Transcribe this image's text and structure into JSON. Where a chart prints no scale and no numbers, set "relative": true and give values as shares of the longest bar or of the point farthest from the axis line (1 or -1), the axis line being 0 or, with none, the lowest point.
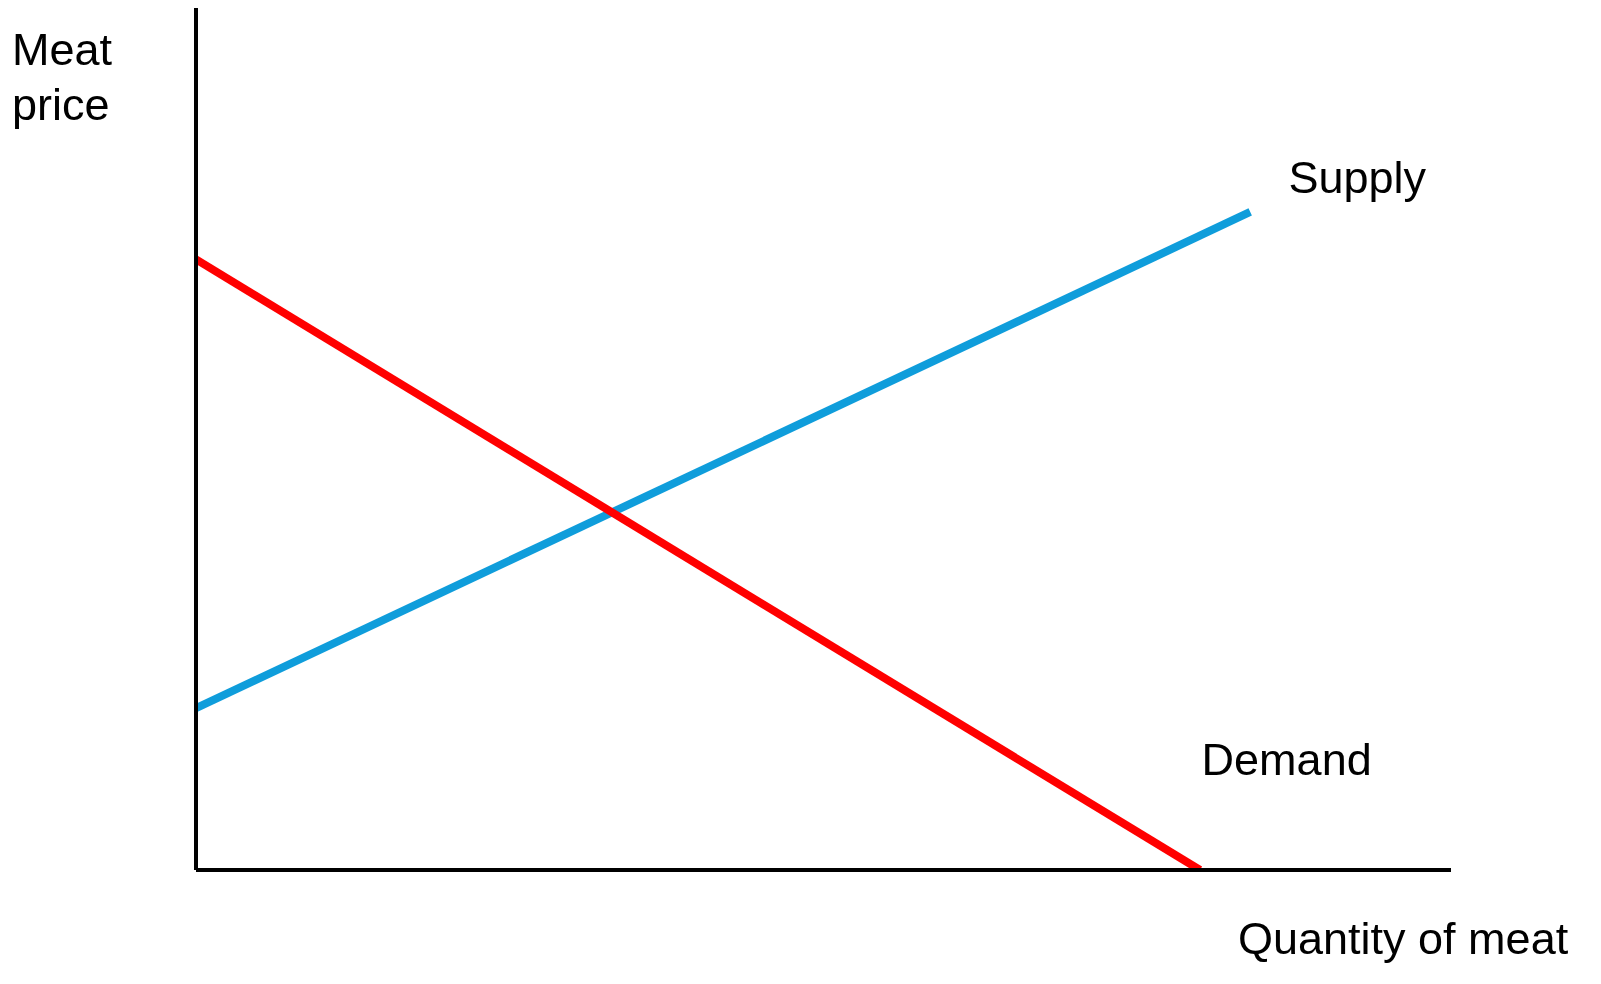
{
  "chart_data": {
    "type": "line",
    "relative": true,
    "xlabel": "Quantity of meat",
    "ylabel": "Meat price",
    "categories": [
      null,
      null,
      null,
      null,
      null,
      null,
      null,
      null,
      null,
      null,
      null,
      null,
      null,
      null,
      null,
      null,
      null,
      null,
      null,
      null,
      null,
      null,
      null,
      null,
      null,
      null
    ],
    "series": [
      {
        "name": "Supply",
        "color": "#0f9ddb",
        "values": [
          0.246,
          null,
          null,
          null,
          null,
          null,
          null,
          null,
          null,
          null,
          null,
          null,
          null,
          null,
          null,
          null,
          null,
          null,
          null,
          null,
          null,
          1.0,
          null,
          null,
          null,
          null
        ]
      },
      {
        "name": "Demand",
        "color": "#ff0000",
        "values": [
          0.928,
          null,
          null,
          null,
          null,
          null,
          null,
          null,
          null,
          null,
          null,
          null,
          null,
          null,
          null,
          null,
          null,
          null,
          null,
          null,
          0.0,
          null,
          null,
          null,
          null,
          null
        ]
      }
    ],
    "grid": false,
    "legend": false,
    "marker": "none",
    "line_style": "solid"
  }
}
